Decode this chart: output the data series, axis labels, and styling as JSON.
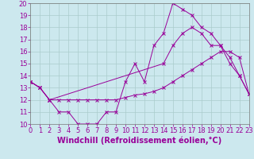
{
  "bg_color": "#cce8ee",
  "line_color": "#990099",
  "grid_color": "#aacccc",
  "xlim": [
    0,
    23
  ],
  "ylim": [
    10,
    20
  ],
  "xticks": [
    0,
    1,
    2,
    3,
    4,
    5,
    6,
    7,
    8,
    9,
    10,
    11,
    12,
    13,
    14,
    15,
    16,
    17,
    18,
    19,
    20,
    21,
    22,
    23
  ],
  "yticks": [
    10,
    11,
    12,
    13,
    14,
    15,
    16,
    17,
    18,
    19,
    20
  ],
  "xlabel": "Windchill (Refroidissement éolien,°C)",
  "line1_x": [
    0,
    1,
    2,
    3,
    4,
    5,
    6,
    7,
    8,
    9,
    10,
    11,
    12,
    13,
    14,
    15,
    16,
    17,
    18,
    19,
    20,
    21,
    22,
    23
  ],
  "line1_y": [
    13.5,
    13.0,
    12.0,
    11.0,
    11.0,
    10.0,
    10.0,
    10.0,
    11.0,
    11.0,
    13.5,
    15.0,
    13.5,
    16.5,
    17.5,
    20.0,
    19.5,
    19.0,
    18.0,
    17.5,
    16.5,
    15.0,
    14.0,
    12.5
  ],
  "line2_x": [
    0,
    1,
    2,
    14,
    15,
    16,
    17,
    18,
    19,
    20,
    21,
    22,
    23
  ],
  "line2_y": [
    13.5,
    13.0,
    12.0,
    15.0,
    16.5,
    17.5,
    18.0,
    17.5,
    16.5,
    16.5,
    15.5,
    14.0,
    12.5
  ],
  "line3_x": [
    0,
    1,
    2,
    3,
    4,
    5,
    6,
    7,
    8,
    9,
    10,
    11,
    12,
    13,
    14,
    15,
    16,
    17,
    18,
    19,
    20,
    21,
    22,
    23
  ],
  "line3_y": [
    13.5,
    13.0,
    12.0,
    12.0,
    12.0,
    12.0,
    12.0,
    12.0,
    12.0,
    12.0,
    12.2,
    12.4,
    12.5,
    12.7,
    13.0,
    13.5,
    14.0,
    14.5,
    15.0,
    15.5,
    16.0,
    16.0,
    15.5,
    12.5
  ],
  "tick_fontsize": 6,
  "xlabel_fontsize": 7
}
